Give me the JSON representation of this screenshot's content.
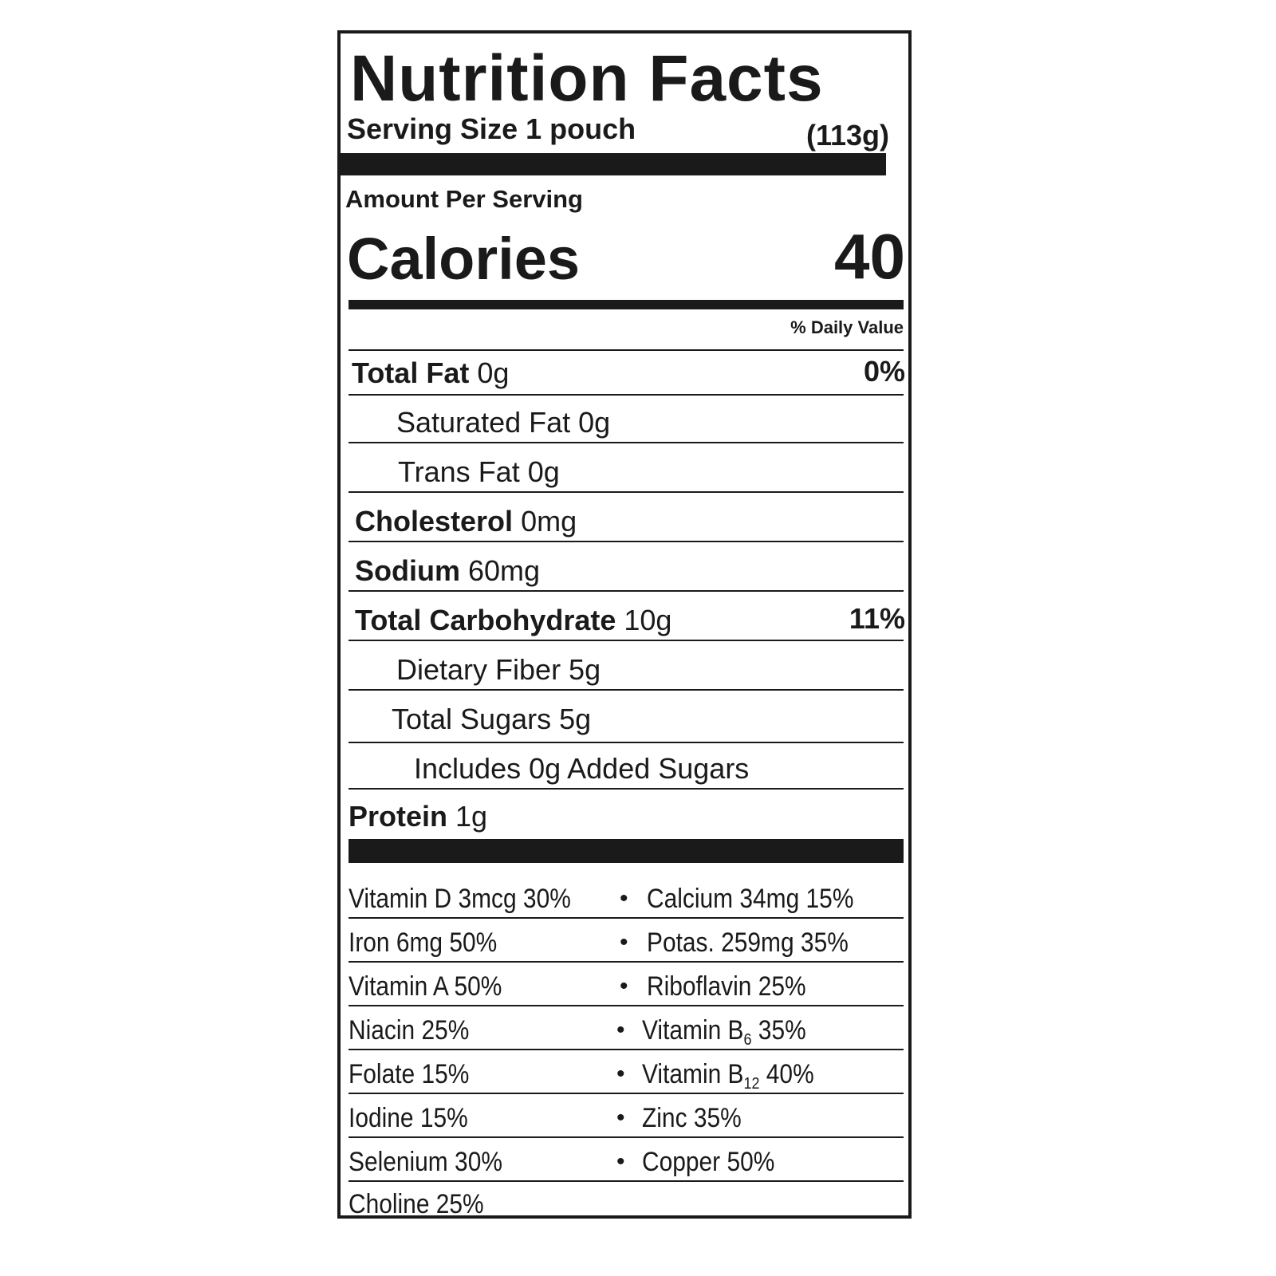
{
  "title": "Nutrition Facts",
  "serving_size": {
    "label": "Serving Size 1 pouch",
    "amount": "(113g)"
  },
  "amount_per_serving": "Amount Per Serving",
  "calories": {
    "label": "Calories",
    "value": "40"
  },
  "daily_value_header": "% Daily Value",
  "nutrients": [
    {
      "name": "Total Fat",
      "amount": "0g",
      "dv": "0%"
    },
    {
      "name": "Saturated Fat 0g"
    },
    {
      "name": "Trans Fat 0g"
    },
    {
      "name": "Cholesterol",
      "amount": "0mg"
    },
    {
      "name": "Sodium",
      "amount": "60mg"
    },
    {
      "name": "Total Carbohydrate",
      "amount": "10g",
      "dv": "11%"
    },
    {
      "name": "Dietary Fiber 5g"
    },
    {
      "name": "Total Sugars 5g"
    },
    {
      "name": "Includes 0g Added Sugars"
    },
    {
      "name": "Protein",
      "amount": "1g"
    }
  ],
  "vitamins": [
    {
      "left": {
        "text": "Vitamin D 3mcg 30%"
      },
      "right": {
        "text": "Calcium 34mg 15%"
      }
    },
    {
      "left": {
        "text": "Iron 6mg 50%"
      },
      "right": {
        "text": "Potas. 259mg 35%"
      }
    },
    {
      "left": {
        "text": "Vitamin A 50%"
      },
      "right": {
        "text": "Riboflavin 25%"
      }
    },
    {
      "left": {
        "text": "Niacin 25%"
      },
      "right": {
        "text": "Vitamin B",
        "sub": "6",
        "after": "35%"
      }
    },
    {
      "left": {
        "text": "Folate 15%"
      },
      "right": {
        "text": "Vitamin B",
        "sub": "12",
        "after": "40%"
      }
    },
    {
      "left": {
        "text": "Iodine 15%"
      },
      "right": {
        "text": "Zinc 35%"
      }
    },
    {
      "left": {
        "text": "Selenium 30%"
      },
      "right": {
        "text": "Copper 50%"
      }
    },
    {
      "left": {
        "text": "Choline 25%"
      }
    }
  ]
}
